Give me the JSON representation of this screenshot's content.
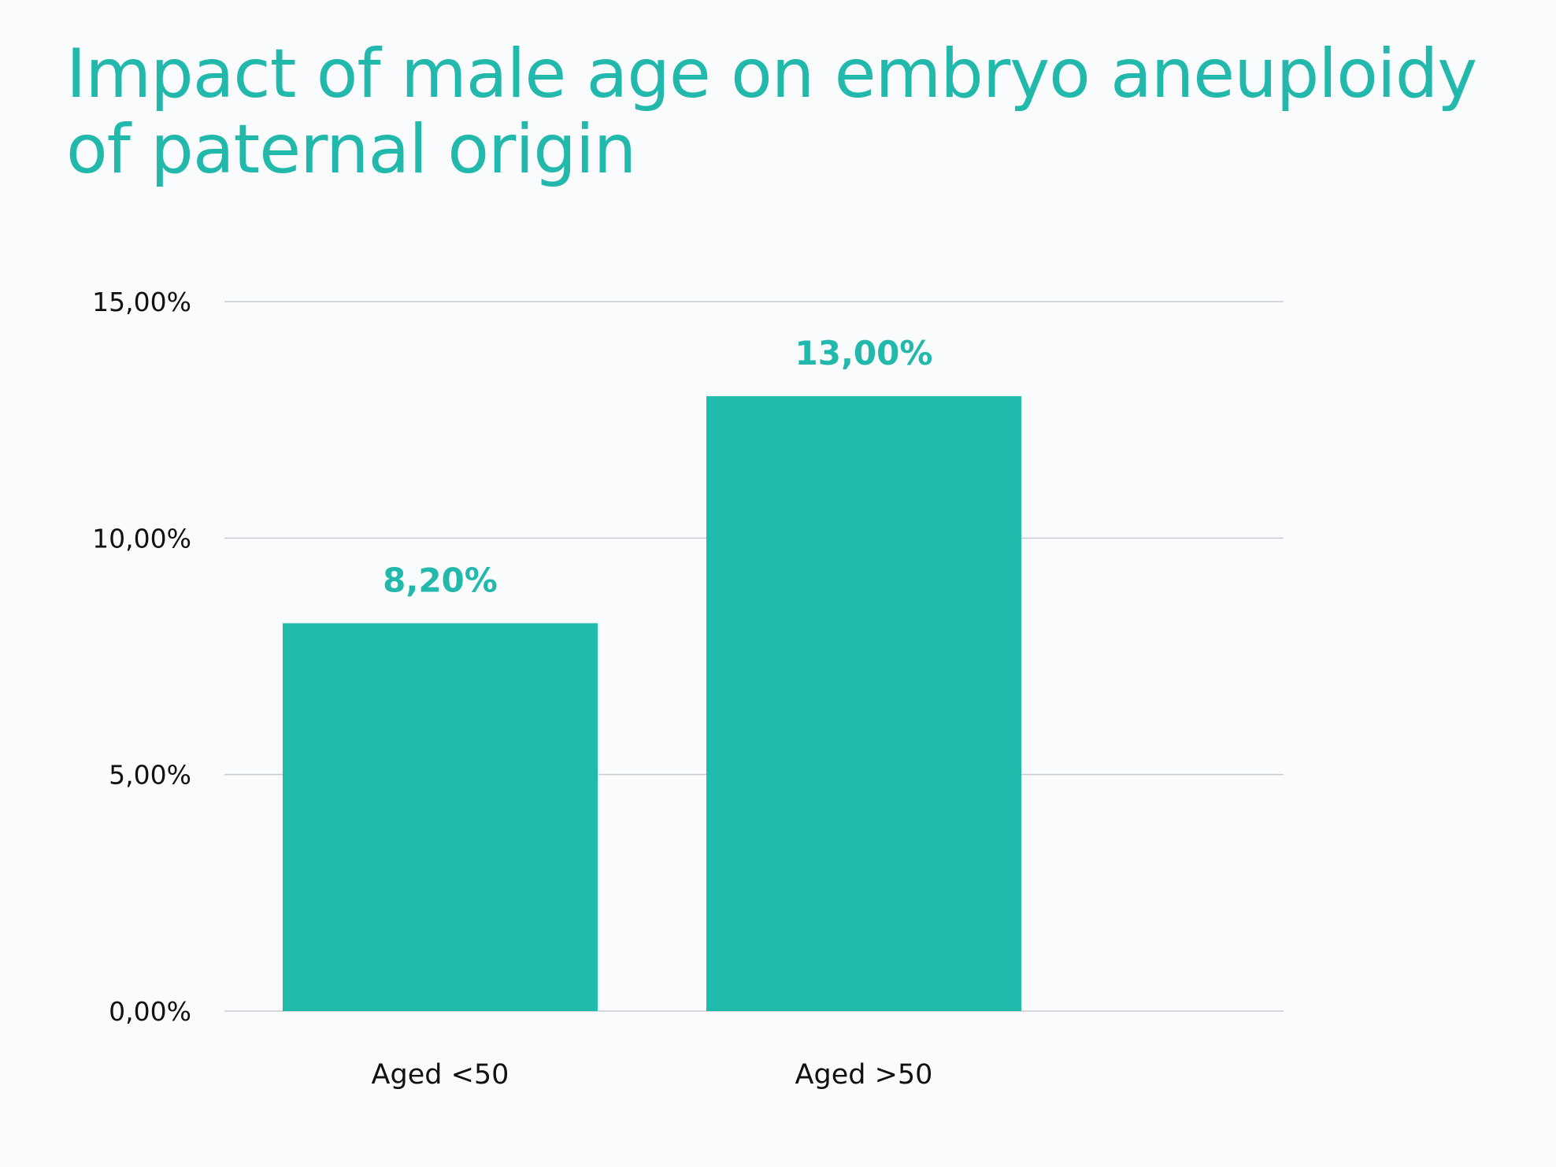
{
  "colors": {
    "background": "#f9fbfd",
    "accent": "#22b8ab",
    "bar": "#20bbad",
    "grid": "#c8ccd2",
    "text": "#111111"
  },
  "chart_data": {
    "type": "bar",
    "title_lines": [
      "Impact of male age on embryo aneuploidy",
      "of paternal origin"
    ],
    "categories": [
      "Aged <50",
      "Aged >50"
    ],
    "values": [
      8.2,
      13.0
    ],
    "data_labels": [
      "8,20%",
      "13,00%"
    ],
    "xlabel": "",
    "ylabel": "",
    "ylim": [
      0,
      15
    ],
    "yticks": [
      0,
      5,
      10,
      15
    ],
    "ytick_labels": [
      "0,00%",
      "5,00%",
      "10,00%",
      "15,00%"
    ],
    "grid": true,
    "legend": "none"
  }
}
